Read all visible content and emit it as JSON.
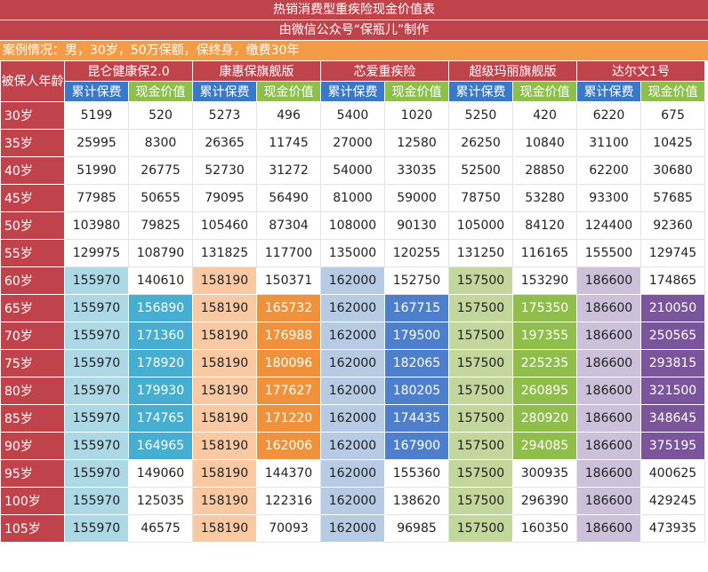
{
  "title": "热销消费型重疾险现金价值表",
  "subtitle": "由微信公众号“保瓶儿”制作",
  "case_info": "案例情况：男，30岁，50万保额，保终身，缴费30年",
  "age_header": "被保人年龄",
  "sub_headers": [
    "累计保费",
    "现金价值"
  ],
  "products": [
    {
      "name": "昆仑健康保2.0",
      "light": "#add8e6",
      "dark": "#46aed0",
      "dark_text": "#ffffff"
    },
    {
      "name": "康惠保旗舰版",
      "light": "#f9c9a4",
      "dark": "#f0913b",
      "dark_text": "#ffffff"
    },
    {
      "name": "芯爱重疾险",
      "light": "#b8cbe4",
      "dark": "#4d7fcd",
      "dark_text": "#ffffff"
    },
    {
      "name": "超级玛丽旗舰版",
      "light": "#c3d69b",
      "dark": "#8fbe4a",
      "dark_text": "#ffffff"
    },
    {
      "name": "达尔文1号",
      "light": "#ccc0da",
      "dark": "#7b559b",
      "dark_text": "#ffffff"
    }
  ],
  "rows": [
    {
      "age": "30岁",
      "values": [
        "5199",
        "520",
        "5273",
        "496",
        "5400",
        "1020",
        "5250",
        "420",
        "6220",
        "675"
      ]
    },
    {
      "age": "35岁",
      "values": [
        "25995",
        "8300",
        "26365",
        "11745",
        "27000",
        "12580",
        "26250",
        "10840",
        "31100",
        "10425"
      ]
    },
    {
      "age": "40岁",
      "values": [
        "51990",
        "26775",
        "52730",
        "31272",
        "54000",
        "33035",
        "52500",
        "28850",
        "62200",
        "30680"
      ]
    },
    {
      "age": "45岁",
      "values": [
        "77985",
        "50655",
        "79095",
        "56490",
        "81000",
        "59000",
        "78750",
        "53280",
        "93300",
        "57685"
      ]
    },
    {
      "age": "50岁",
      "values": [
        "103980",
        "79825",
        "105460",
        "87304",
        "108000",
        "90130",
        "105000",
        "84120",
        "124400",
        "92360"
      ]
    },
    {
      "age": "55岁",
      "values": [
        "129975",
        "108790",
        "131825",
        "117700",
        "135000",
        "120255",
        "131250",
        "116165",
        "155500",
        "129745"
      ]
    },
    {
      "age": "60岁",
      "values": [
        "155970",
        "140610",
        "158190",
        "150371",
        "162000",
        "152750",
        "157500",
        "153290",
        "186600",
        "174865"
      ]
    },
    {
      "age": "65岁",
      "values": [
        "155970",
        "156890",
        "158190",
        "165732",
        "162000",
        "167715",
        "157500",
        "175350",
        "186600",
        "210050"
      ]
    },
    {
      "age": "70岁",
      "values": [
        "155970",
        "171360",
        "158190",
        "176988",
        "162000",
        "179500",
        "157500",
        "197355",
        "186600",
        "250565"
      ]
    },
    {
      "age": "75岁",
      "values": [
        "155970",
        "178920",
        "158190",
        "180096",
        "162000",
        "182065",
        "157500",
        "225235",
        "186600",
        "293815"
      ]
    },
    {
      "age": "80岁",
      "values": [
        "155970",
        "179930",
        "158190",
        "177627",
        "162000",
        "180205",
        "157500",
        "260895",
        "186600",
        "321500"
      ]
    },
    {
      "age": "85岁",
      "values": [
        "155970",
        "174765",
        "158190",
        "171220",
        "162000",
        "174435",
        "157500",
        "280920",
        "186600",
        "348645"
      ]
    },
    {
      "age": "90岁",
      "values": [
        "155970",
        "164965",
        "158190",
        "162006",
        "162000",
        "167900",
        "157500",
        "294085",
        "186600",
        "375195"
      ]
    },
    {
      "age": "95岁",
      "values": [
        "155970",
        "149060",
        "158190",
        "144370",
        "162000",
        "155360",
        "157500",
        "300935",
        "186600",
        "400625"
      ]
    },
    {
      "age": "100岁",
      "values": [
        "155970",
        "125035",
        "158190",
        "122316",
        "162000",
        "138620",
        "157500",
        "296390",
        "186600",
        "429245"
      ]
    },
    {
      "age": "105岁",
      "values": [
        "155970",
        "46575",
        "158190",
        "70093",
        "162000",
        "96985",
        "157500",
        "160350",
        "186600",
        "473935"
      ]
    }
  ],
  "highlight": {
    "light_from_row": 6,
    "dark_from_row": 7,
    "dark_to_row": 12
  },
  "chart_data": {
    "type": "table",
    "title": "热销消费型重疾险现金价值表",
    "subtitle": "由微信公众号“保瓶儿”制作",
    "columns": [
      "被保人年龄",
      "累计保费",
      "现金价值"
    ],
    "categories": [
      "30岁",
      "35岁",
      "40岁",
      "45岁",
      "50岁",
      "55岁",
      "60岁",
      "65岁",
      "70岁",
      "75岁",
      "80岁",
      "85岁",
      "90岁",
      "95岁",
      "100岁",
      "105岁"
    ]
  }
}
